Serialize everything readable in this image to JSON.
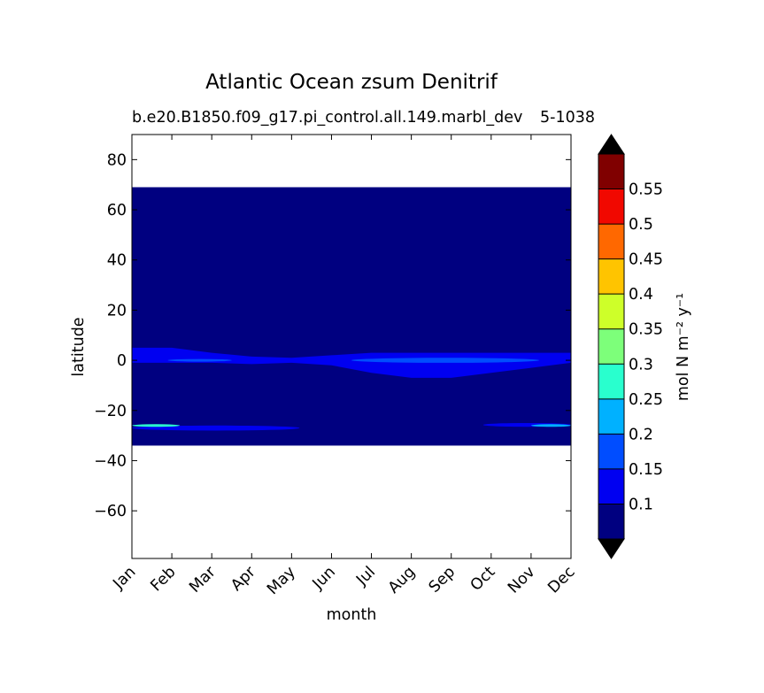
{
  "chart_data": {
    "type": "heatmap",
    "title": "Atlantic Ocean zsum Denitrif",
    "subtitle": "b.e20.B1850.f09_g17.pi_control.all.149.marbl_dev",
    "subtitle_right": "5-1038",
    "xlabel": "month",
    "ylabel": "latitude",
    "x_categories": [
      "Jan",
      "Feb",
      "Mar",
      "Apr",
      "May",
      "Jun",
      "Jul",
      "Aug",
      "Sep",
      "Oct",
      "Nov",
      "Dec"
    ],
    "yticks": [
      80,
      60,
      40,
      20,
      0,
      -20,
      -40,
      -60
    ],
    "ytick_labels": [
      "80",
      "60",
      "40",
      "20",
      "0",
      "−20",
      "−40",
      "−60"
    ],
    "ylim": [
      -79,
      90
    ],
    "data_lat_range": [
      -34,
      69
    ],
    "background_value": 0.05,
    "colorbar": {
      "label": "mol N m⁻² y⁻¹",
      "levels": [
        0.05,
        0.1,
        0.15,
        0.2,
        0.25,
        0.3,
        0.35,
        0.4,
        0.45,
        0.5,
        0.55,
        0.6
      ],
      "tick_labels": [
        "0.1",
        "0.15",
        "0.2",
        "0.25",
        "0.3",
        "0.35",
        "0.4",
        "0.45",
        "0.5",
        "0.55"
      ],
      "colors": [
        "#000080",
        "#0000f1",
        "#004dff",
        "#00b1ff",
        "#29ffce",
        "#7dff7a",
        "#ceff29",
        "#ffc400",
        "#ff6800",
        "#f10800",
        "#800000"
      ],
      "extend": "both",
      "extend_colors": [
        "#000000",
        "#000000"
      ]
    },
    "features": [
      {
        "name": "equatorial band",
        "month": [
          0,
          11
        ],
        "lat_center": [
          2,
          2,
          1,
          0,
          0,
          0,
          -1,
          -2,
          -2,
          -1,
          0,
          1
        ],
        "half_width": [
          3,
          3,
          2,
          1.5,
          1,
          2,
          4,
          5,
          5,
          4,
          3,
          2
        ],
        "value": 0.1
      },
      {
        "name": "equatorial core",
        "month": [
          5.5,
          10.2
        ],
        "lat": [
          -1,
          1
        ],
        "value": 0.15
      },
      {
        "name": "equatorial streak",
        "month": [
          0.9,
          2.5
        ],
        "lat": [
          -0.5,
          0.5
        ],
        "value": 0.15
      },
      {
        "name": "southern streak (early)",
        "month": [
          0,
          4.2
        ],
        "lat": [
          -26,
          -28
        ],
        "value": 0.1
      },
      {
        "name": "southern core (Jan)",
        "month": [
          0,
          1.2
        ],
        "lat": [
          -25.5,
          -26.5
        ],
        "value": 0.25
      },
      {
        "name": "southern streak (late)",
        "month": [
          8.8,
          11
        ],
        "lat": [
          -25,
          -26.5
        ],
        "value": 0.1
      },
      {
        "name": "southern core (Dec)",
        "month": [
          10,
          11
        ],
        "lat": [
          -25.5,
          -26.5
        ],
        "value": 0.2
      }
    ]
  }
}
